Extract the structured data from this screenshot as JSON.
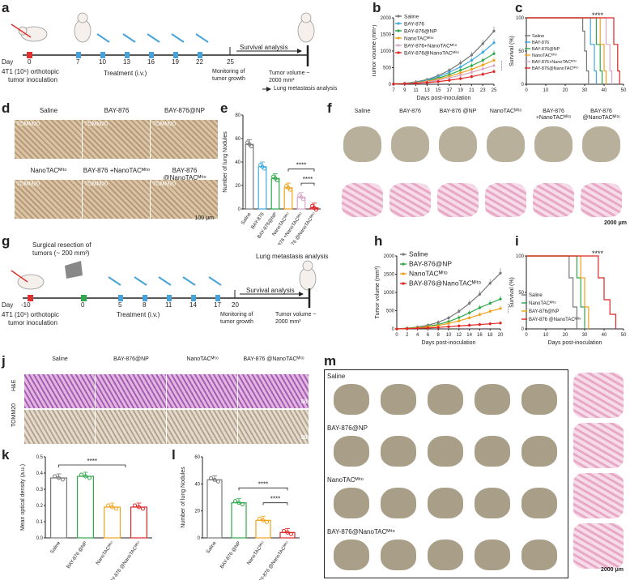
{
  "panels": {
    "a": {
      "letter": "a",
      "day_label": "Day",
      "days": [
        "0",
        "7",
        "10",
        "13",
        "16",
        "19",
        "22",
        "25"
      ],
      "cell_line": "4T1 (10⁶) orthotopic",
      "inoculation": "tumor inoculation",
      "treatment": "Treatment (i.v.)",
      "survival": "Survival analysis",
      "monitoring": "Monitoring of tumor growth",
      "tumor_volume": "Tumor volume ~ 2000 mm³",
      "lung_analysis": "Lung metastasis analysis"
    },
    "b": {
      "letter": "b",
      "significance": "****"
    },
    "c": {
      "letter": "c",
      "significance": "****"
    },
    "d": {
      "letter": "d",
      "groups": [
        "Saline",
        "BAY-876",
        "BAY-876@NP",
        "NanoTAC^Mito",
        "BAY-876 +NanoTAC^Mito",
        "BAY-876 @NanoTAC^Mito"
      ],
      "stain": "TOMM20",
      "scale": "100 μm"
    },
    "e": {
      "letter": "e",
      "sig1": "****",
      "sig2": "****"
    },
    "f": {
      "letter": "f",
      "groups": [
        "Saline",
        "BAY-876",
        "BAY-876 @NP",
        "NanoTAC^Mito",
        "BAY-876 +NanoTAC^Mito",
        "BAY-876 @NanoTAC^Mito"
      ],
      "scale": "2000 μm"
    },
    "g": {
      "letter": "g",
      "resection": "Surgical resection of tumors (~ 200 mm³)",
      "lung_analysis": "Lung metastasis analysis",
      "day_label": "Day",
      "days": [
        "-10",
        "0",
        "5",
        "8",
        "11",
        "14",
        "17",
        "20"
      ],
      "cell_line": "4T1 (10⁶) orthotopic",
      "inoculation": "tumor inoculation",
      "treatment": "Treatment (i.v.)",
      "survival": "Survival analysis",
      "monitoring": "Monitoring of tumor growth",
      "tumor_volume": "Tumor volume ~ 2000 mm³"
    },
    "h": {
      "letter": "h",
      "significance": "****"
    },
    "i": {
      "letter": "i",
      "significance": "****"
    },
    "j": {
      "letter": "j",
      "groups": [
        "Saline",
        "BAY-876@NP",
        "NanoTAC^Mito",
        "BAY-876 @NanoTAC^Mito"
      ],
      "rows": [
        "H&E",
        "TOMM20"
      ],
      "scale": "50 μm"
    },
    "k": {
      "letter": "k",
      "significance": "****"
    },
    "l": {
      "letter": "l",
      "sig1": "****",
      "sig2": "****"
    },
    "m": {
      "letter": "m",
      "groups": [
        "Saline",
        "BAY-876@NP",
        "NanoTAC^Mito",
        "BAY-876@NanoTAC^Mito"
      ],
      "scale": "2000 μm"
    }
  },
  "chart_data": [
    {
      "id": "b",
      "type": "line",
      "title": "",
      "xlabel": "Days post-inoculation",
      "ylabel": "Tumor volume (mm³)",
      "x": [
        7,
        9,
        11,
        13,
        15,
        17,
        19,
        21,
        23,
        25
      ],
      "xticks": [
        "7",
        "9",
        "11",
        "13",
        "15",
        "17",
        "19",
        "21",
        "23",
        "25"
      ],
      "ylim": [
        0,
        2000
      ],
      "yticks": [
        "0",
        "500",
        "1000",
        "1500",
        "2000"
      ],
      "series": [
        {
          "name": "Saline",
          "color": "#777777",
          "values": [
            10,
            30,
            70,
            140,
            260,
            420,
            640,
            880,
            1220,
            1600
          ]
        },
        {
          "name": "BAY-876",
          "color": "#3fa9e0",
          "values": [
            10,
            25,
            60,
            120,
            220,
            360,
            520,
            720,
            960,
            1250
          ]
        },
        {
          "name": "BAY-876@NP",
          "color": "#2ea84a",
          "values": [
            10,
            22,
            52,
            100,
            180,
            290,
            420,
            560,
            720,
            920
          ]
        },
        {
          "name": "NanoTAC^Mito",
          "color": "#f2a21b",
          "values": [
            10,
            20,
            46,
            88,
            150,
            240,
            340,
            450,
            580,
            720
          ]
        },
        {
          "name": "BAY-876+NanoTAC^Mito",
          "color": "#d9a8c8",
          "values": [
            10,
            18,
            40,
            72,
            120,
            190,
            270,
            360,
            460,
            560
          ]
        },
        {
          "name": "BAY-876@NanoTAC^Mito",
          "color": "#e02424",
          "values": [
            10,
            14,
            28,
            50,
            80,
            120,
            170,
            230,
            300,
            380
          ]
        }
      ]
    },
    {
      "id": "c",
      "type": "line",
      "xlabel": "",
      "ylabel": "Survival (%)",
      "xlim": [
        0,
        50
      ],
      "xticks": [
        "0",
        "10",
        "20",
        "30",
        "40",
        "50"
      ],
      "ylim": [
        0,
        100
      ],
      "yticks": [
        "0",
        "50",
        "100"
      ],
      "series": [
        {
          "name": "Saline",
          "color": "#777777",
          "steps": [
            [
              0,
              100
            ],
            [
              28,
              100
            ],
            [
              29,
              80
            ],
            [
              30,
              50
            ],
            [
              31,
              20
            ],
            [
              32,
              0
            ]
          ]
        },
        {
          "name": "BAY-876",
          "color": "#3fa9e0",
          "steps": [
            [
              0,
              100
            ],
            [
              31,
              100
            ],
            [
              33,
              60
            ],
            [
              35,
              20
            ],
            [
              36,
              0
            ]
          ]
        },
        {
          "name": "BAY-876@NP",
          "color": "#2ea84a",
          "steps": [
            [
              0,
              100
            ],
            [
              35,
              100
            ],
            [
              36,
              60
            ],
            [
              38,
              20
            ],
            [
              39,
              0
            ]
          ]
        },
        {
          "name": "NanoTAC^Mito",
          "color": "#f2a21b",
          "steps": [
            [
              0,
              100
            ],
            [
              37,
              100
            ],
            [
              38,
              60
            ],
            [
              40,
              20
            ],
            [
              41,
              0
            ]
          ]
        },
        {
          "name": "BAY-876+NanoTAC^Mito",
          "color": "#d9a8c8",
          "steps": [
            [
              0,
              100
            ],
            [
              39,
              100
            ],
            [
              41,
              60
            ],
            [
              43,
              20
            ],
            [
              44,
              0
            ]
          ]
        },
        {
          "name": "BAY-876@NanoTAC^Mito",
          "color": "#e02424",
          "steps": [
            [
              0,
              100
            ],
            [
              43,
              100
            ],
            [
              45,
              60
            ],
            [
              47,
              20
            ],
            [
              48,
              0
            ]
          ]
        }
      ]
    },
    {
      "id": "e",
      "type": "bar",
      "ylabel": "Number of lung Nodules",
      "ylim": [
        0,
        80
      ],
      "yticks": [
        "0",
        "20",
        "40",
        "60",
        "80"
      ],
      "categories": [
        "Saline",
        "BAY-876",
        "BAY-876@NP",
        "NanoTAC^Mito",
        "BAY-876 +NanoTAC^Mito",
        "BAY-876 @NanoTAC^Mito"
      ],
      "values": [
        55,
        36,
        26,
        18,
        10,
        1
      ],
      "colors": [
        "#777777",
        "#3fa9e0",
        "#2ea84a",
        "#f2a21b",
        "#d9a8c8",
        "#e02424"
      ]
    },
    {
      "id": "h",
      "type": "line",
      "xlabel": "Days post-inoculation",
      "ylabel": "Tumor volume (mm³)",
      "x": [
        0,
        2,
        4,
        6,
        8,
        10,
        12,
        14,
        16,
        18,
        20
      ],
      "xticks": [
        "0",
        "2",
        "4",
        "6",
        "8",
        "10",
        "12",
        "14",
        "16",
        "18",
        "20"
      ],
      "ylim": [
        0,
        2000
      ],
      "yticks": [
        "0",
        "500",
        "1000",
        "1500",
        "2000"
      ],
      "series": [
        {
          "name": "Saline",
          "color": "#777777",
          "values": [
            0,
            20,
            50,
            100,
            180,
            300,
            480,
            700,
            950,
            1250,
            1530
          ]
        },
        {
          "name": "BAY-876@NP",
          "color": "#2ea84a",
          "values": [
            0,
            15,
            35,
            70,
            120,
            200,
            310,
            440,
            580,
            700,
            820
          ]
        },
        {
          "name": "NanoTAC^Mito",
          "color": "#f2a21b",
          "values": [
            0,
            12,
            28,
            55,
            90,
            150,
            220,
            300,
            390,
            480,
            560
          ]
        },
        {
          "name": "BAY-876@NanoTAC^Mito",
          "color": "#e02424",
          "values": [
            0,
            8,
            15,
            25,
            40,
            60,
            80,
            100,
            120,
            140,
            160
          ]
        }
      ]
    },
    {
      "id": "i",
      "type": "line",
      "xlabel": "Days post-inoculation",
      "ylabel": "Survival (%)",
      "xlim": [
        0,
        50
      ],
      "xticks": [
        "0",
        "10",
        "20",
        "30",
        "40",
        "50"
      ],
      "ylim": [
        0,
        100
      ],
      "yticks": [
        "0",
        "50",
        "100"
      ],
      "series": [
        {
          "name": "Saline",
          "color": "#777777",
          "steps": [
            [
              0,
              100
            ],
            [
              20,
              100
            ],
            [
              22,
              70
            ],
            [
              24,
              30
            ],
            [
              26,
              0
            ]
          ]
        },
        {
          "name": "NanoTAC^Mito",
          "color": "#2ea84a",
          "steps": [
            [
              0,
              100
            ],
            [
              24,
              100
            ],
            [
              26,
              70
            ],
            [
              28,
              30
            ],
            [
              30,
              0
            ]
          ]
        },
        {
          "name": "BAY-876@NP",
          "color": "#f2a21b",
          "steps": [
            [
              0,
              100
            ],
            [
              26,
              100
            ],
            [
              28,
              70
            ],
            [
              30,
              30
            ],
            [
              32,
              0
            ]
          ]
        },
        {
          "name": "BAY-876 @NanoTAC^Mito",
          "color": "#e02424",
          "steps": [
            [
              0,
              100
            ],
            [
              34,
              100
            ],
            [
              37,
              70
            ],
            [
              40,
              40
            ],
            [
              43,
              20
            ],
            [
              46,
              0
            ]
          ]
        }
      ]
    },
    {
      "id": "k",
      "type": "bar",
      "ylabel": "Mean optical density (a.u.)",
      "ylim": [
        0,
        0.5
      ],
      "yticks": [
        "0.0",
        "0.1",
        "0.2",
        "0.3",
        "0.4",
        "0.5"
      ],
      "categories": [
        "Saline",
        "BAY-876 @NP",
        "NanoTAC^Mito",
        "BAY-876 @NanoTAC^Mito"
      ],
      "values": [
        0.37,
        0.38,
        0.19,
        0.19
      ],
      "colors": [
        "#777777",
        "#2ea84a",
        "#f2a21b",
        "#e02424"
      ]
    },
    {
      "id": "l",
      "type": "bar",
      "ylabel": "Number of lung Nodules",
      "ylim": [
        0,
        60
      ],
      "yticks": [
        "0",
        "20",
        "40",
        "60"
      ],
      "categories": [
        "Saline",
        "BAY-876 @NP",
        "NanoTAC^Mito",
        "BAY-876 @NanoTAC^Mito"
      ],
      "values": [
        43,
        26,
        13,
        4
      ],
      "colors": [
        "#777777",
        "#2ea84a",
        "#f2a21b",
        "#e02424"
      ]
    }
  ]
}
